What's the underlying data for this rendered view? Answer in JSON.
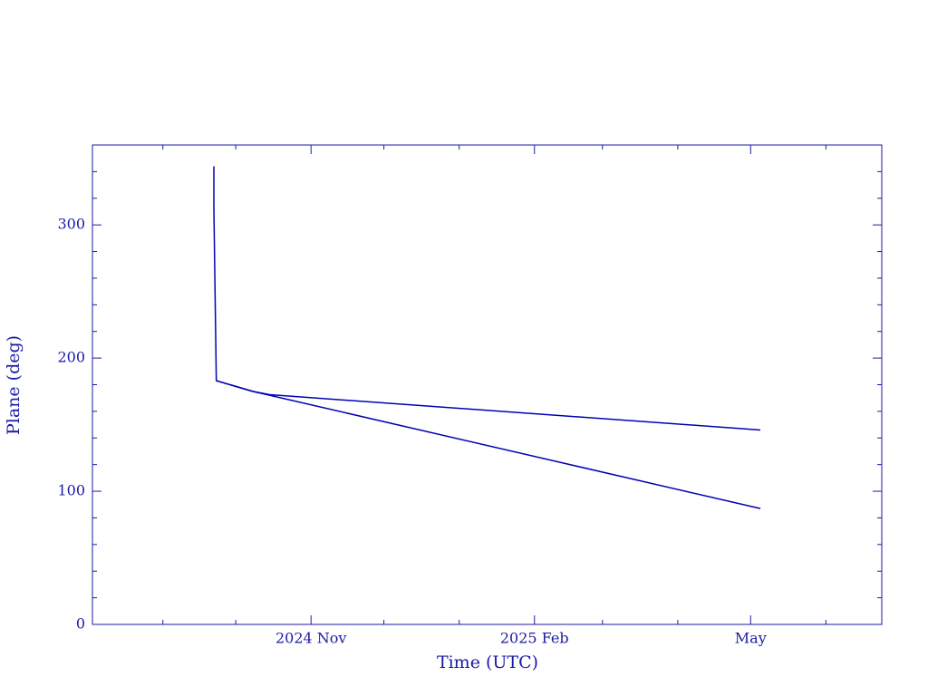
{
  "chart_data": {
    "type": "line",
    "xlabel": "Time (UTC)",
    "ylabel": "Plane (deg)",
    "color": "#1a1aa6",
    "series": [
      {
        "color": "#0000b4",
        "x": [
          "2024-09-22",
          "2024-09-22",
          "2024-09-23",
          "2024-10-08",
          "2024-10-15",
          "2025-05-05"
        ],
        "values": [
          344,
          313,
          183,
          175,
          172.5,
          146
        ]
      },
      {
        "color": "#0000b4",
        "x": [
          "2024-09-23",
          "2024-10-08",
          "2025-05-05"
        ],
        "values": [
          183,
          175,
          87
        ]
      }
    ],
    "xlim": [
      "2024-08-03",
      "2025-06-24"
    ],
    "xticks": [
      {
        "value": "2024-11-01",
        "label": "2024 Nov"
      },
      {
        "value": "2025-02-01",
        "label": "2025 Feb"
      },
      {
        "value": "2025-05-01",
        "label": "May"
      }
    ],
    "xminorticks": [
      "2024-09-01",
      "2024-10-01",
      "2024-12-01",
      "2025-01-01",
      "2025-03-01",
      "2025-04-01",
      "2025-06-01"
    ],
    "ylim": [
      0,
      360
    ],
    "yticks": [
      0,
      100,
      200,
      300
    ],
    "yminorticks": [
      20,
      40,
      60,
      80,
      120,
      140,
      160,
      180,
      220,
      240,
      260,
      280,
      320,
      340
    ]
  }
}
